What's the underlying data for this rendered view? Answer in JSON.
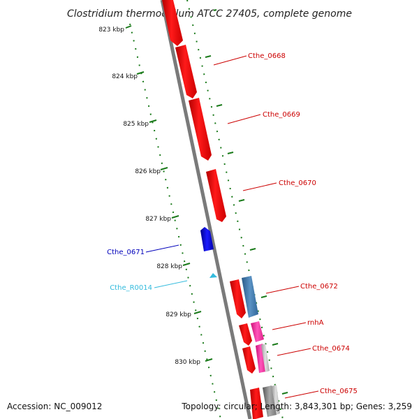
{
  "title": "Clostridium thermocellum ATCC 27405, complete genome",
  "footer": {
    "accession": "Accession: NC_009012",
    "summary": "Topology: circular; Length: 3,843,301 bp; Genes: 3,259"
  },
  "scale_labels": [
    "823 kbp",
    "824 kbp",
    "825 kbp",
    "826 kbp",
    "827 kbp",
    "828 kbp",
    "829 kbp",
    "830 kbp"
  ],
  "genes": [
    {
      "name": "Cthe_0668",
      "color": "#cc0000"
    },
    {
      "name": "Cthe_0669",
      "color": "#cc0000"
    },
    {
      "name": "Cthe_0670",
      "color": "#cc0000"
    },
    {
      "name": "Cthe_0671",
      "color": "#0000bb"
    },
    {
      "name": "Cthe_R0014",
      "color": "#33bbdd"
    },
    {
      "name": "Cthe_0672",
      "color": "#cc0000"
    },
    {
      "name": "rnhA",
      "color": "#cc0000"
    },
    {
      "name": "Cthe_0674",
      "color": "#cc0000"
    },
    {
      "name": "Cthe_0675",
      "color": "#cc0000"
    }
  ],
  "colors": {
    "backbone": "#7a7a7a",
    "tick": "#1a7a1a",
    "cds": "#ff0000",
    "cds_blue": "#3377bb",
    "cds_pink": "#ff33aa",
    "cds_grey": "#888888"
  }
}
